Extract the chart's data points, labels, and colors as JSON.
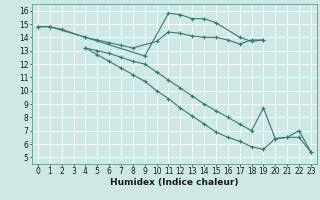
{
  "xlabel": "Humidex (Indice chaleur)",
  "bg_color": "#cde8e5",
  "grid_color": "#ffffff",
  "line_color": "#2e7d6e",
  "line1_x": [
    0,
    1,
    4,
    9,
    11,
    12,
    13,
    14,
    15,
    17,
    18,
    19
  ],
  "line1_y": [
    14.8,
    14.8,
    14.0,
    12.6,
    15.8,
    15.7,
    15.4,
    15.4,
    15.1,
    14.0,
    13.7,
    13.8
  ],
  "line2_x": [
    0,
    1,
    2,
    4,
    5,
    6,
    7,
    8,
    10,
    11,
    12,
    13,
    14,
    15,
    16,
    17,
    18,
    19
  ],
  "line2_y": [
    14.8,
    14.8,
    14.6,
    14.0,
    13.8,
    13.6,
    13.4,
    13.2,
    13.7,
    14.4,
    14.3,
    14.1,
    14.0,
    14.0,
    13.8,
    13.5,
    13.8,
    13.8
  ],
  "line3_x": [
    4,
    5,
    6,
    7,
    8,
    9,
    10,
    11,
    12,
    13,
    14,
    15,
    16,
    17,
    18,
    19,
    20,
    21,
    22,
    23
  ],
  "line3_y": [
    13.2,
    13.0,
    12.8,
    12.5,
    12.2,
    12.0,
    11.4,
    10.8,
    10.2,
    9.6,
    9.0,
    8.5,
    8.0,
    7.5,
    7.0,
    8.7,
    6.4,
    6.5,
    7.0,
    5.4
  ],
  "line4_x": [
    4,
    5,
    6,
    7,
    8,
    9,
    10,
    11,
    12,
    13,
    14,
    15,
    16,
    17,
    18,
    19,
    20,
    21,
    22,
    23
  ],
  "line4_y": [
    13.2,
    12.7,
    12.2,
    11.7,
    11.2,
    10.7,
    10.0,
    9.4,
    8.7,
    8.1,
    7.5,
    6.9,
    6.5,
    6.2,
    5.8,
    5.6,
    6.4,
    6.5,
    6.5,
    5.4
  ],
  "xlim": [
    -0.5,
    23.5
  ],
  "ylim": [
    4.5,
    16.5
  ],
  "yticks": [
    5,
    6,
    7,
    8,
    9,
    10,
    11,
    12,
    13,
    14,
    15,
    16
  ],
  "xticks": [
    0,
    1,
    2,
    3,
    4,
    5,
    6,
    7,
    8,
    9,
    10,
    11,
    12,
    13,
    14,
    15,
    16,
    17,
    18,
    19,
    20,
    21,
    22,
    23
  ],
  "tick_fontsize": 5.5,
  "xlabel_fontsize": 6.5
}
